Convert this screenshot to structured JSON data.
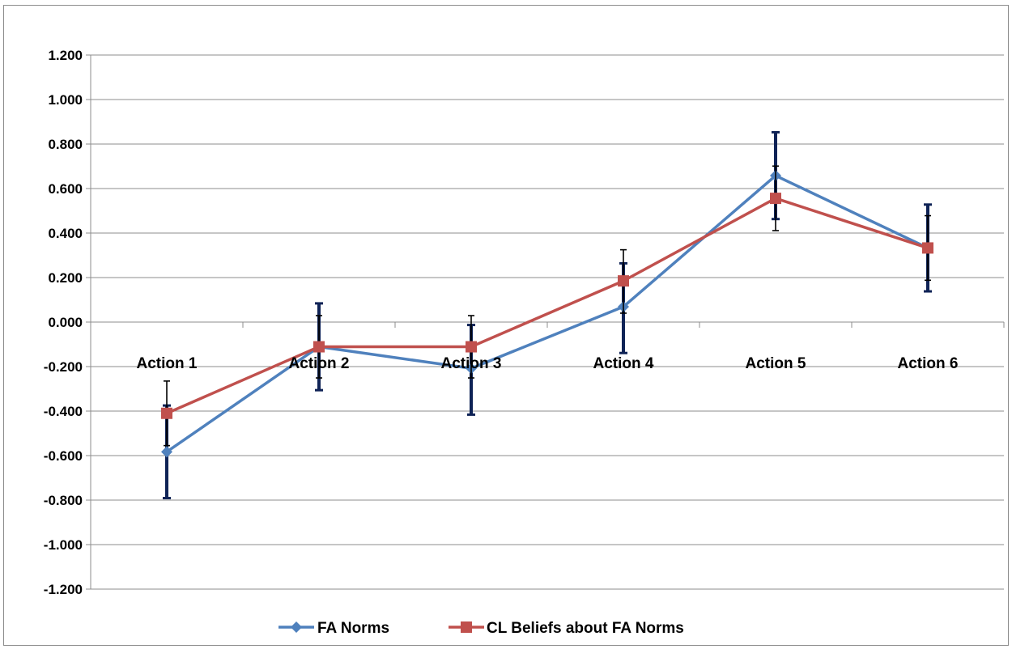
{
  "chart_data": {
    "type": "line",
    "categories": [
      "Action 1",
      "Action 2",
      "Action 3",
      "Action 4",
      "Action 5",
      "Action 6"
    ],
    "ylim": [
      -1.2,
      1.2
    ],
    "y_ticks": [
      "1.200",
      "1.000",
      "0.800",
      "0.600",
      "0.400",
      "0.200",
      "0.000",
      "-0.200",
      "-0.400",
      "-0.600",
      "-0.800",
      "-1.000",
      "-1.200"
    ],
    "y_tick_values": [
      1.2,
      1.0,
      0.8,
      0.6,
      0.4,
      0.2,
      0.0,
      -0.2,
      -0.4,
      -0.6,
      -0.8,
      -1.0,
      -1.2
    ],
    "grid": "horizontal",
    "legend_position": "bottom",
    "series": [
      {
        "name": "FA Norms",
        "color": "#4f81bd",
        "marker": "diamond",
        "values": [
          -0.583,
          -0.111,
          -0.208,
          0.069,
          0.658,
          0.333
        ],
        "error_upper": [
          0.208,
          0.195,
          0.195,
          0.195,
          0.195,
          0.195
        ],
        "error_lower": [
          0.208,
          0.195,
          0.208,
          0.208,
          0.195,
          0.195
        ]
      },
      {
        "name": "CL Beliefs about FA Norms",
        "color": "#c0504d",
        "marker": "square",
        "values": [
          -0.41,
          -0.111,
          -0.111,
          0.185,
          0.556,
          0.333
        ],
        "error_upper": [
          0.145,
          0.14,
          0.14,
          0.14,
          0.145,
          0.145
        ],
        "error_lower": [
          0.145,
          0.14,
          0.14,
          0.145,
          0.145,
          0.145
        ]
      }
    ]
  }
}
